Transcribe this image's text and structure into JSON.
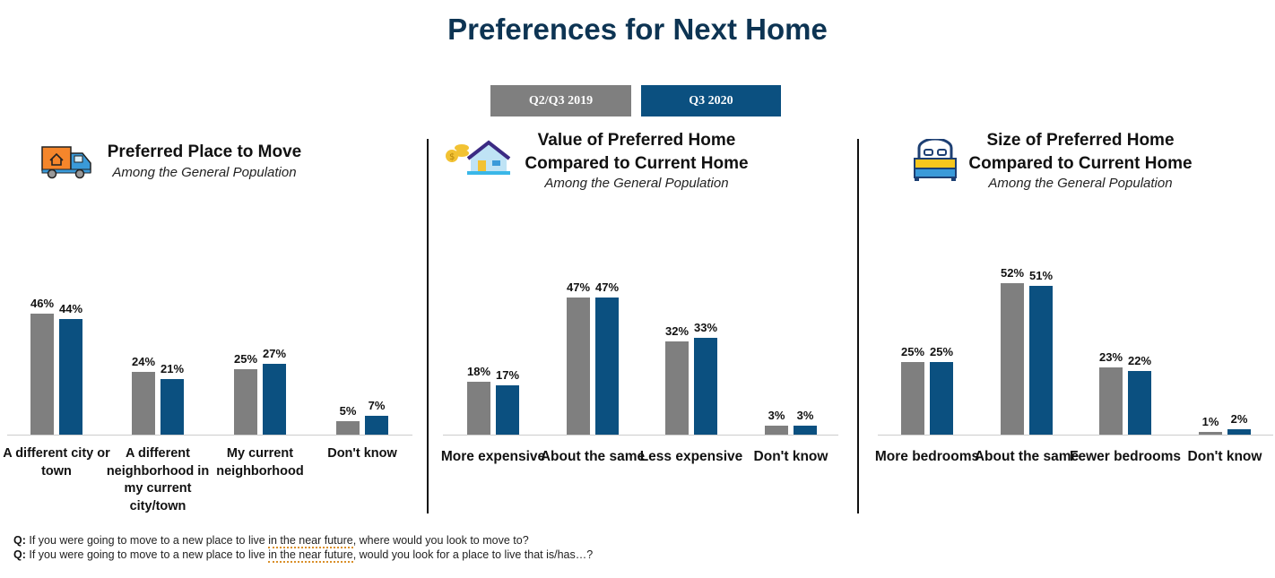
{
  "title": "Preferences for Next Home",
  "legend": [
    {
      "label": "Q2/Q3 2019",
      "color": "#7f7f7f"
    },
    {
      "label": "Q3 2020",
      "color": "#0b5080"
    }
  ],
  "chart_data": [
    {
      "type": "bar",
      "title": "Preferred Place to Move",
      "subtitle": "Among the General Population",
      "icon": "moving-truck-icon",
      "categories": [
        "A different city or town",
        "A different neighborhood in my current city/town",
        "My current neighborhood",
        "Don't know"
      ],
      "series": [
        {
          "name": "Q2/Q3 2019",
          "values": [
            46,
            24,
            25,
            5
          ]
        },
        {
          "name": "Q3 2020",
          "values": [
            44,
            21,
            27,
            7
          ]
        }
      ],
      "unit": "%"
    },
    {
      "type": "bar",
      "title": "Value of Preferred Home Compared to Current Home",
      "subtitle": "Among the General Population",
      "icon": "house-coins-icon",
      "categories": [
        "More expensive",
        "About the same",
        "Less expensive",
        "Don't know"
      ],
      "series": [
        {
          "name": "Q2/Q3 2019",
          "values": [
            18,
            47,
            32,
            3
          ]
        },
        {
          "name": "Q3 2020",
          "values": [
            17,
            47,
            33,
            3
          ]
        }
      ],
      "unit": "%"
    },
    {
      "type": "bar",
      "title": "Size of Preferred Home Compared to Current Home",
      "subtitle": "Among the General Population",
      "icon": "bed-icon",
      "categories": [
        "More bedrooms",
        "About the same",
        "Fewer bedrooms",
        "Don't know"
      ],
      "series": [
        {
          "name": "Q2/Q3 2019",
          "values": [
            25,
            52,
            23,
            1
          ]
        },
        {
          "name": "Q3 2020",
          "values": [
            25,
            51,
            22,
            2
          ]
        }
      ],
      "unit": "%"
    }
  ],
  "panel_titles": [
    [
      "Preferred Place to Move"
    ],
    [
      "Value of Preferred Home",
      "Compared to Current Home"
    ],
    [
      "Size of Preferred Home",
      "Compared to Current Home"
    ]
  ],
  "questions": [
    {
      "prefix": "Q:",
      "pre": " If you were going to move to a new place to live ",
      "underlined": "in the near future",
      "post": ", where would you look to move to?"
    },
    {
      "prefix": "Q:",
      "pre": " If you were going to move to a new place to live ",
      "underlined": "in the near future",
      "post": ", would you look for a place to live that is/has…?"
    }
  ]
}
